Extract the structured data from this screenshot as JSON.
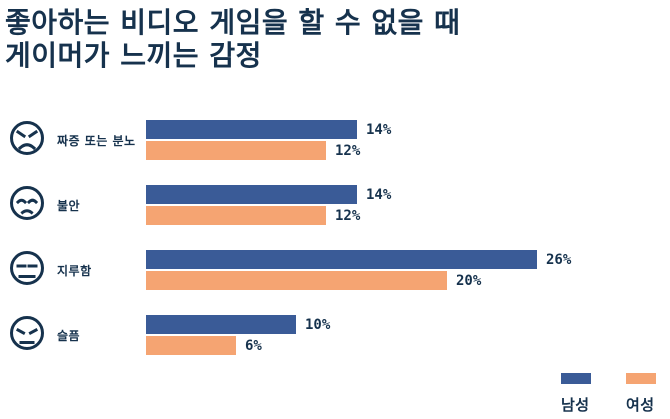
{
  "title": {
    "line1": "좋아하는 비디오 게임을 할 수 없을 때",
    "line2": "게이머가 느끼는 감정"
  },
  "colors": {
    "male": "#3A5B97",
    "female": "#F5A472",
    "text": "#16324D",
    "background": "#FFFFFF"
  },
  "legend": {
    "male": "남성",
    "female": "여성"
  },
  "chart_data": {
    "type": "bar",
    "orientation": "horizontal",
    "title": "좋아하는 비디오 게임을 할 수 없을 때 게이머가 느끼는 감정",
    "unit": "%",
    "xlim": [
      0,
      30
    ],
    "legend_position": "bottom-right",
    "grid": false,
    "series_names": [
      "남성",
      "여성"
    ],
    "categories": [
      "짜증 또는 분노",
      "불안",
      "지루함",
      "슬픔"
    ],
    "rows": [
      {
        "category": "짜증 또는 분노",
        "icon": "angry-face",
        "male": 14,
        "female": 12,
        "male_label": "14%",
        "female_label": "12%"
      },
      {
        "category": "불안",
        "icon": "anxious-face",
        "male": 14,
        "female": 12,
        "male_label": "14%",
        "female_label": "12%"
      },
      {
        "category": "지루함",
        "icon": "bored-face",
        "male": 26,
        "female": 20,
        "male_label": "26%",
        "female_label": "20%"
      },
      {
        "category": "슬픔",
        "icon": "sad-face",
        "male": 10,
        "female": 6,
        "male_label": "10%",
        "female_label": "6%"
      }
    ]
  }
}
